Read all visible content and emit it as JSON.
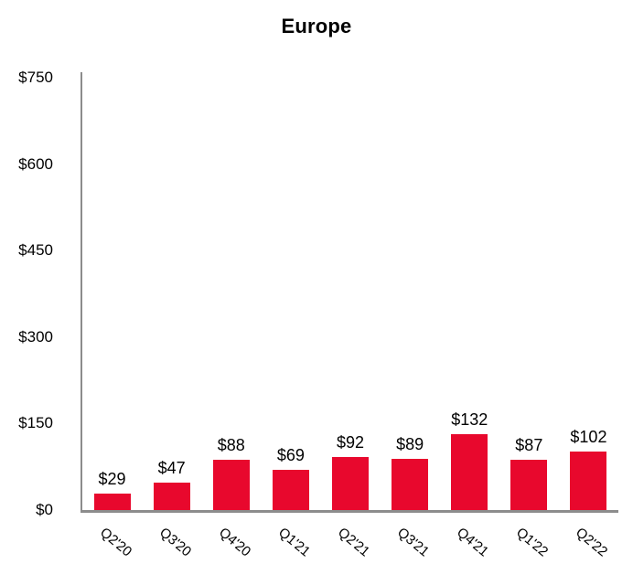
{
  "title": "Europe",
  "chart_data": {
    "type": "bar",
    "title": "Europe",
    "categories": [
      "Q2'20",
      "Q3'20",
      "Q4'20",
      "Q1'21",
      "Q2'21",
      "Q3'21",
      "Q4'21",
      "Q1'22",
      "Q2'22"
    ],
    "values": [
      29,
      47,
      88,
      69,
      92,
      89,
      132,
      87,
      102
    ],
    "bar_labels": [
      "$29",
      "$47",
      "$88",
      "$69",
      "$92",
      "$89",
      "$132",
      "$87",
      "$102"
    ],
    "y_ticks": [
      {
        "value": 0,
        "label": "$0"
      },
      {
        "value": 150,
        "label": "$150"
      },
      {
        "value": 300,
        "label": "$300"
      },
      {
        "value": 450,
        "label": "$450"
      },
      {
        "value": 600,
        "label": "$600"
      },
      {
        "value": 750,
        "label": "$750"
      }
    ],
    "ylim": [
      0,
      750
    ],
    "xlabel": "",
    "ylabel": "",
    "grid": false,
    "legend": false,
    "bar_color": "#e8082d",
    "axis_color": "#8c8c8c",
    "text_color": "#000000"
  }
}
